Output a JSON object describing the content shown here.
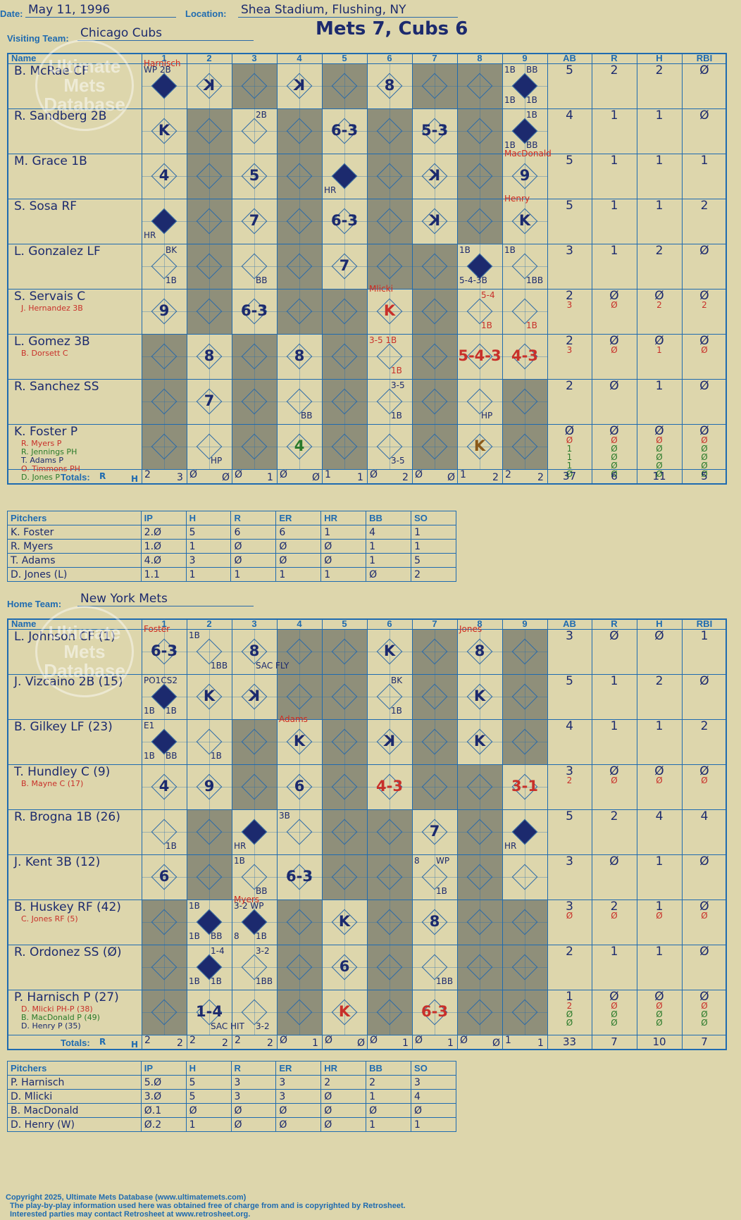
{
  "header": {
    "date_label": "Date:",
    "date": "May 11, 1996",
    "location_label": "Location:",
    "location": "Shea Stadium, Flushing, NY",
    "visiting_label": "Visiting Team:",
    "visiting_team": "Chicago Cubs",
    "home_label": "Home Team:",
    "home_team": "New York Mets",
    "title": "Mets 7, Cubs 6"
  },
  "columns": [
    "Name",
    "1",
    "2",
    "3",
    "4",
    "5",
    "6",
    "7",
    "8",
    "9",
    "AB",
    "R",
    "H",
    "RBI"
  ],
  "watermark": {
    "line1": "Ultimate",
    "line2": "Mets",
    "line3": "Database",
    "line4": "ultimatemets.com"
  },
  "visitors": {
    "players": [
      {
        "name": "B. McRae CF",
        "subs": [],
        "ab": [
          "5"
        ],
        "r": [
          "2"
        ],
        "h": [
          "2"
        ],
        "rbi": [
          "Ø"
        ]
      },
      {
        "name": "R. Sandberg 2B",
        "subs": [],
        "ab": [
          "4"
        ],
        "r": [
          "1"
        ],
        "h": [
          "1"
        ],
        "rbi": [
          "Ø"
        ]
      },
      {
        "name": "M. Grace 1B",
        "subs": [],
        "ab": [
          "5"
        ],
        "r": [
          "1"
        ],
        "h": [
          "1"
        ],
        "rbi": [
          "1"
        ]
      },
      {
        "name": "S. Sosa RF",
        "subs": [],
        "ab": [
          "5"
        ],
        "r": [
          "1"
        ],
        "h": [
          "1"
        ],
        "rbi": [
          "2"
        ]
      },
      {
        "name": "L. Gonzalez LF",
        "subs": [],
        "ab": [
          "3"
        ],
        "r": [
          "1"
        ],
        "h": [
          "2"
        ],
        "rbi": [
          "Ø"
        ]
      },
      {
        "name": "S. Servais C",
        "subs": [
          "J. Hernandez 3B"
        ],
        "ab": [
          "2",
          "3"
        ],
        "r": [
          "Ø",
          "Ø"
        ],
        "h": [
          "Ø",
          "2"
        ],
        "rbi": [
          "Ø",
          "2"
        ]
      },
      {
        "name": "L. Gomez 3B",
        "subs": [
          "B. Dorsett C"
        ],
        "ab": [
          "2",
          "3"
        ],
        "r": [
          "Ø",
          "Ø"
        ],
        "h": [
          "Ø",
          "1"
        ],
        "rbi": [
          "Ø",
          "Ø"
        ]
      },
      {
        "name": "R. Sanchez SS",
        "subs": [],
        "ab": [
          "2"
        ],
        "r": [
          "Ø"
        ],
        "h": [
          "1"
        ],
        "rbi": [
          "Ø"
        ]
      },
      {
        "name": "K. Foster P",
        "subs": [
          "R. Myers P",
          "R. Jennings PH",
          "T. Adams P",
          "O. Timmons PH",
          "D. Jones P"
        ],
        "ab": [
          "Ø",
          "Ø",
          "1",
          "1",
          "1",
          "Ø"
        ],
        "r": [
          "Ø",
          "Ø",
          "Ø",
          "Ø",
          "Ø",
          "Ø"
        ],
        "h": [
          "Ø",
          "Ø",
          "Ø",
          "Ø",
          "Ø",
          "Ø"
        ],
        "rbi": [
          "Ø",
          "Ø",
          "Ø",
          "Ø",
          "Ø",
          "Ø"
        ]
      }
    ],
    "totals_label": "Totals:",
    "totals_rh": [
      [
        "2",
        "3"
      ],
      [
        "Ø",
        "Ø"
      ],
      [
        "Ø",
        "1"
      ],
      [
        "Ø",
        "Ø"
      ],
      [
        "1",
        "1"
      ],
      [
        "Ø",
        "2"
      ],
      [
        "Ø",
        "Ø"
      ],
      [
        "1",
        "2"
      ],
      [
        "2",
        "2"
      ]
    ],
    "totals": [
      "37",
      "6",
      "11",
      "5"
    ],
    "pitchers_header": [
      "Pitchers",
      "IP",
      "H",
      "R",
      "ER",
      "HR",
      "BB",
      "SO"
    ],
    "pitchers": [
      [
        "K. Foster",
        "2.Ø",
        "5",
        "6",
        "6",
        "1",
        "4",
        "1"
      ],
      [
        "R. Myers",
        "1.Ø",
        "1",
        "Ø",
        "Ø",
        "Ø",
        "1",
        "1"
      ],
      [
        "T. Adams",
        "4.Ø",
        "3",
        "Ø",
        "Ø",
        "Ø",
        "1",
        "5"
      ],
      [
        "D. Jones (L)",
        "1.1",
        "1",
        "1",
        "1",
        "1",
        "Ø",
        "2"
      ]
    ]
  },
  "home": {
    "players": [
      {
        "name": "L. Johnson CF (1)",
        "subs": [],
        "ab": [
          "3"
        ],
        "r": [
          "Ø"
        ],
        "h": [
          "Ø"
        ],
        "rbi": [
          "1"
        ]
      },
      {
        "name": "J. Vizcaino 2B (15)",
        "subs": [],
        "ab": [
          "5"
        ],
        "r": [
          "1"
        ],
        "h": [
          "2"
        ],
        "rbi": [
          "Ø"
        ]
      },
      {
        "name": "B. Gilkey LF (23)",
        "subs": [],
        "ab": [
          "4"
        ],
        "r": [
          "1"
        ],
        "h": [
          "1"
        ],
        "rbi": [
          "2"
        ]
      },
      {
        "name": "T. Hundley C (9)",
        "subs": [
          "B. Mayne C (17)"
        ],
        "ab": [
          "3",
          "2"
        ],
        "r": [
          "Ø",
          "Ø"
        ],
        "h": [
          "Ø",
          "Ø"
        ],
        "rbi": [
          "Ø",
          "Ø"
        ]
      },
      {
        "name": "R. Brogna 1B (26)",
        "subs": [],
        "ab": [
          "5"
        ],
        "r": [
          "2"
        ],
        "h": [
          "4"
        ],
        "rbi": [
          "4"
        ]
      },
      {
        "name": "J. Kent 3B (12)",
        "subs": [],
        "ab": [
          "3"
        ],
        "r": [
          "Ø"
        ],
        "h": [
          "1"
        ],
        "rbi": [
          "Ø"
        ]
      },
      {
        "name": "B. Huskey RF (42)",
        "subs": [
          "C. Jones RF (5)"
        ],
        "ab": [
          "3",
          "Ø"
        ],
        "r": [
          "2",
          "Ø"
        ],
        "h": [
          "1",
          "Ø"
        ],
        "rbi": [
          "Ø",
          "Ø"
        ]
      },
      {
        "name": "R. Ordonez SS (Ø)",
        "subs": [],
        "ab": [
          "2"
        ],
        "r": [
          "1"
        ],
        "h": [
          "1"
        ],
        "rbi": [
          "Ø"
        ]
      },
      {
        "name": "P. Harnisch P (27)",
        "subs": [
          "D. Mlicki PH-P (38)",
          "B. MacDonald P (49)",
          "D. Henry P (35)"
        ],
        "ab": [
          "1",
          "2",
          "Ø",
          "Ø"
        ],
        "r": [
          "Ø",
          "Ø",
          "Ø",
          "Ø"
        ],
        "h": [
          "Ø",
          "Ø",
          "Ø",
          "Ø"
        ],
        "rbi": [
          "Ø",
          "Ø",
          "Ø",
          "Ø"
        ]
      }
    ],
    "totals_label": "Totals:",
    "totals_rh": [
      [
        "2",
        "2"
      ],
      [
        "2",
        "2"
      ],
      [
        "2",
        "2"
      ],
      [
        "Ø",
        "1"
      ],
      [
        "Ø",
        "Ø"
      ],
      [
        "Ø",
        "1"
      ],
      [
        "Ø",
        "1"
      ],
      [
        "Ø",
        "Ø"
      ],
      [
        "1",
        "1"
      ]
    ],
    "totals": [
      "33",
      "7",
      "10",
      "7"
    ],
    "pitchers_header": [
      "Pitchers",
      "IP",
      "H",
      "R",
      "ER",
      "HR",
      "BB",
      "SO"
    ],
    "pitchers": [
      [
        "P. Harnisch",
        "5.Ø",
        "5",
        "3",
        "3",
        "2",
        "2",
        "3"
      ],
      [
        "D. Mlicki",
        "3.Ø",
        "5",
        "3",
        "3",
        "Ø",
        "1",
        "4"
      ],
      [
        "B. MacDonald",
        "Ø.1",
        "Ø",
        "Ø",
        "Ø",
        "Ø",
        "Ø",
        "Ø"
      ],
      [
        "D. Henry (W)",
        "Ø.2",
        "1",
        "Ø",
        "Ø",
        "Ø",
        "1",
        "1"
      ]
    ]
  },
  "visitors_plays": [
    [
      {
        "c": 1,
        "note": "HR",
        "tl": "WP 2B",
        "run": true,
        "pitch": "Harnisch"
      },
      {
        "c": 2,
        "big": "K",
        "rev": true
      },
      {
        "c": 4,
        "big": "K",
        "rev": true
      },
      {
        "c": 6,
        "big": "8"
      },
      {
        "c": 9,
        "run": true,
        "tl": "1B",
        "tr": "BB",
        "bl": "1B",
        "br": "1B"
      }
    ],
    [
      {
        "c": 1,
        "big": "K"
      },
      {
        "c": 3,
        "tr": "2B"
      },
      {
        "c": 5,
        "big": "6-3"
      },
      {
        "c": 7,
        "big": "5-3"
      },
      {
        "c": 9,
        "run": true,
        "tr": "1B",
        "bl": "1B",
        "br": "BB"
      }
    ],
    [
      {
        "c": 1,
        "big": "4"
      },
      {
        "c": 3,
        "big": "5"
      },
      {
        "c": 5,
        "run": true,
        "bl": "HR"
      },
      {
        "c": 7,
        "big": "K",
        "rev": true
      },
      {
        "c": 9,
        "big": "9",
        "pitch": "MacDonald"
      }
    ],
    [
      {
        "c": 1,
        "run": true,
        "bl": "HR"
      },
      {
        "c": 3,
        "big": "7"
      },
      {
        "c": 5,
        "big": "6-3"
      },
      {
        "c": 7,
        "big": "K",
        "rev": true
      },
      {
        "c": 9,
        "big": "K",
        "pitch": "Henry"
      }
    ],
    [
      {
        "c": 1,
        "tr": "BK",
        "br": "1B"
      },
      {
        "c": 3,
        "br": "BB"
      },
      {
        "c": 5,
        "big": "7"
      },
      {
        "c": 8,
        "run": true,
        "tl": "1B",
        "bl": "5-4-3B"
      },
      {
        "c": 9,
        "tl": "1B",
        "br": "1BB"
      }
    ],
    [
      {
        "c": 1,
        "big": "9"
      },
      {
        "c": 3,
        "big": "6-3"
      },
      {
        "c": 6,
        "big": "K",
        "red": true,
        "pitch": "Mlicki"
      },
      {
        "c": 8,
        "tr": "5-4",
        "br": "1B",
        "red": true
      },
      {
        "c": 9,
        "br": "1B",
        "red": true
      }
    ],
    [
      {
        "c": 2,
        "big": "8"
      },
      {
        "c": 4,
        "big": "8"
      },
      {
        "c": 6,
        "tl": "3-5 1B",
        "br": "1B",
        "red": true
      },
      {
        "c": 8,
        "big": "5-4-3",
        "red": true
      },
      {
        "c": 9,
        "big": "4-3",
        "red": true
      }
    ],
    [
      {
        "c": 2,
        "big": "7"
      },
      {
        "c": 4,
        "br": "BB"
      },
      {
        "c": 6,
        "tr": "3-5",
        "br": "1B"
      },
      {
        "c": 8,
        "br": "HP"
      }
    ],
    [
      {
        "c": 2,
        "br": "HP"
      },
      {
        "c": 4,
        "big": "4",
        "green": true
      },
      {
        "c": 6,
        "br": "3-5"
      },
      {
        "c": 8,
        "big": "K",
        "brown": true
      }
    ]
  ],
  "home_plays": [
    [
      {
        "c": 1,
        "big": "6-3",
        "pitch": "Foster"
      },
      {
        "c": 2,
        "tl": "1B",
        "br": "1BB"
      },
      {
        "c": 3,
        "big": "8",
        "br": "SAC FLY"
      },
      {
        "c": 6,
        "big": "K"
      },
      {
        "c": 8,
        "big": "8",
        "pitch": "Jones"
      }
    ],
    [
      {
        "c": 1,
        "run": true,
        "tl": "PO1CS2",
        "bl": "1B",
        "br": "1B"
      },
      {
        "c": 2,
        "big": "K"
      },
      {
        "c": 3,
        "big": "K",
        "rev": true
      },
      {
        "c": 6,
        "tr": "BK",
        "br": "1B"
      },
      {
        "c": 8,
        "big": "K"
      }
    ],
    [
      {
        "c": 1,
        "run": true,
        "tl": "E1",
        "bl": "1B",
        "br": "BB"
      },
      {
        "c": 2,
        "br": "1B"
      },
      {
        "c": 4,
        "big": "K",
        "pitch": "Adams"
      },
      {
        "c": 6,
        "big": "K",
        "rev": true
      },
      {
        "c": 8,
        "big": "K"
      }
    ],
    [
      {
        "c": 1,
        "big": "4"
      },
      {
        "c": 2,
        "big": "9"
      },
      {
        "c": 4,
        "big": "6"
      },
      {
        "c": 6,
        "big": "4-3",
        "red": true
      },
      {
        "c": 9,
        "big": "3-1",
        "red": true
      }
    ],
    [
      {
        "c": 1,
        "br": "1B"
      },
      {
        "c": 3,
        "run": true,
        "bl": "HR"
      },
      {
        "c": 4,
        "tl": "3B"
      },
      {
        "c": 7,
        "big": "7"
      },
      {
        "c": 9,
        "run": true,
        "bl": "HR"
      }
    ],
    [
      {
        "c": 1,
        "big": "6"
      },
      {
        "c": 3,
        "tl": "1B",
        "br": "BB"
      },
      {
        "c": 4,
        "big": "6-3"
      },
      {
        "c": 7,
        "tl": "8",
        "tr": "WP",
        "br": "1B"
      }
    ],
    [
      {
        "c": 2,
        "run": true,
        "tl": "1B",
        "bl": "1B",
        "br": "BB"
      },
      {
        "c": 3,
        "run": true,
        "tl": "3-2 WP",
        "bl": "8",
        "br": "1B",
        "pitch": "Myers"
      },
      {
        "c": 5,
        "big": "K"
      },
      {
        "c": 7,
        "big": "8"
      }
    ],
    [
      {
        "c": 2,
        "run": true,
        "tr": "1-4",
        "bl": "1B",
        "br": "1B"
      },
      {
        "c": 3,
        "tr": "3-2",
        "br": "1BB"
      },
      {
        "c": 5,
        "big": "6"
      },
      {
        "c": 7,
        "br": "1BB"
      }
    ],
    [
      {
        "c": 2,
        "big": "1-4",
        "br": "SAC HIT"
      },
      {
        "c": 3,
        "br": "3-2"
      },
      {
        "c": 5,
        "big": "K",
        "red": true
      },
      {
        "c": 7,
        "big": "6-3",
        "red": true
      }
    ]
  ],
  "footer": {
    "line1": "Copyright 2025, Ultimate Mets Database (www.ultimatemets.com)",
    "line2": "The play-by-play information used here was obtained free of charge from and is copyrighted by Retrosheet.",
    "line3": "Interested parties may contact Retrosheet at www.retrosheet.org."
  }
}
